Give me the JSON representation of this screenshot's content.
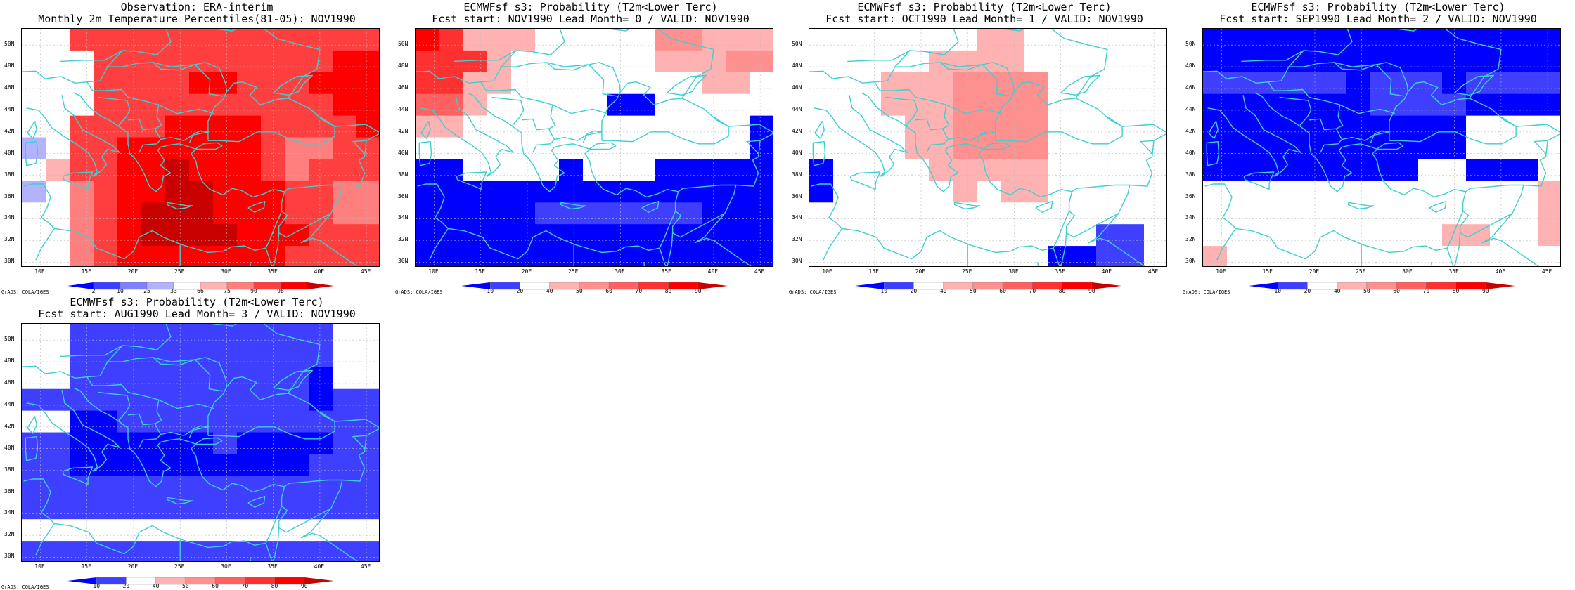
{
  "credit": "GrADS: COLA/IGES",
  "lat_labels": [
    "50N",
    "48N",
    "46N",
    "44N",
    "42N",
    "40N",
    "38N",
    "36N",
    "34N",
    "32N",
    "30N"
  ],
  "lon_labels": [
    "10E",
    "15E",
    "20E",
    "25E",
    "30E",
    "35E",
    "40E",
    "45E"
  ],
  "colors": {
    "coast": "#3fcfcf",
    "grid": "#bbbbbb",
    "obs_scale": [
      "#0000ff",
      "#3f3fff",
      "#7f7fff",
      "#b2b2ff",
      "#ffffff",
      "#ffb2b2",
      "#ff7f7f",
      "#ff3f3f",
      "#ff0000",
      "#c80000"
    ],
    "prob_scale": [
      "#0000ff",
      "#3f3fff",
      "#ffffff",
      "#ffb2b2",
      "#ff9090",
      "#ff6060",
      "#ff3030",
      "#ff0000",
      "#c80000"
    ]
  },
  "colorbars": {
    "obs": {
      "labels": [
        "2",
        "10",
        "25",
        "33",
        "66",
        "75",
        "90",
        "98"
      ]
    },
    "prob": {
      "labels": [
        "10",
        "20",
        "40",
        "50",
        "60",
        "70",
        "80",
        "90"
      ]
    }
  },
  "panels": [
    {
      "title1": "Observation: ERA-interim",
      "title2": "Monthly 2m Temperature Percentiles(81-05): NOV1990",
      "scale": "obs",
      "grid_levels": [
        [
          4,
          4,
          7,
          7,
          7,
          7,
          7,
          7,
          7,
          7,
          7,
          7,
          7,
          7,
          7
        ],
        [
          4,
          4,
          4,
          7,
          7,
          7,
          7,
          7,
          7,
          7,
          7,
          7,
          7,
          8,
          8
        ],
        [
          4,
          4,
          4,
          7,
          7,
          7,
          7,
          8,
          8,
          7,
          7,
          7,
          8,
          8,
          8
        ],
        [
          4,
          4,
          4,
          7,
          7,
          7,
          7,
          7,
          7,
          7,
          7,
          7,
          7,
          8,
          8
        ],
        [
          4,
          4,
          7,
          7,
          7,
          7,
          8,
          8,
          8,
          8,
          7,
          7,
          7,
          7,
          8
        ],
        [
          3,
          4,
          7,
          7,
          8,
          8,
          8,
          8,
          8,
          8,
          7,
          6,
          6,
          7,
          7
        ],
        [
          4,
          5,
          7,
          7,
          8,
          8,
          9,
          8,
          8,
          8,
          7,
          6,
          7,
          7,
          7
        ],
        [
          3,
          4,
          6,
          7,
          8,
          8,
          9,
          9,
          8,
          8,
          8,
          7,
          7,
          6,
          6
        ],
        [
          4,
          4,
          6,
          7,
          8,
          9,
          9,
          9,
          8,
          8,
          8,
          7,
          7,
          6,
          6
        ],
        [
          4,
          4,
          6,
          7,
          8,
          9,
          9,
          9,
          9,
          8,
          8,
          8,
          7,
          7,
          7
        ],
        [
          4,
          4,
          6,
          7,
          8,
          8,
          8,
          8,
          8,
          8,
          8,
          7,
          7,
          7,
          7
        ]
      ]
    },
    {
      "title1": "ECMWFsf s3: Probability (T2m<Lower Terc)",
      "title2": "Fcst start: NOV1990  Lead Month= 0 / VALID: NOV1990",
      "scale": "prob",
      "grid_levels": [
        [
          7,
          6,
          3,
          3,
          3,
          2,
          2,
          2,
          2,
          2,
          4,
          4,
          3,
          3,
          3
        ],
        [
          6,
          6,
          6,
          3,
          2,
          2,
          2,
          2,
          2,
          2,
          3,
          3,
          3,
          4,
          4
        ],
        [
          6,
          6,
          3,
          3,
          2,
          2,
          2,
          2,
          2,
          2,
          2,
          2,
          3,
          3,
          2
        ],
        [
          5,
          5,
          3,
          2,
          2,
          2,
          2,
          2,
          0,
          0,
          2,
          2,
          2,
          2,
          2
        ],
        [
          3,
          3,
          2,
          2,
          2,
          2,
          2,
          2,
          2,
          2,
          2,
          2,
          2,
          2,
          0
        ],
        [
          2,
          2,
          2,
          2,
          2,
          2,
          2,
          2,
          2,
          2,
          2,
          2,
          2,
          2,
          0
        ],
        [
          0,
          0,
          2,
          2,
          2,
          2,
          0,
          2,
          2,
          2,
          0,
          0,
          0,
          0,
          0
        ],
        [
          0,
          0,
          0,
          0,
          0,
          0,
          0,
          0,
          0,
          0,
          0,
          0,
          0,
          0,
          0
        ],
        [
          0,
          0,
          0,
          0,
          0,
          1,
          1,
          1,
          1,
          1,
          1,
          1,
          0,
          0,
          0
        ],
        [
          0,
          0,
          0,
          0,
          0,
          0,
          0,
          0,
          0,
          0,
          0,
          0,
          0,
          0,
          0
        ],
        [
          0,
          0,
          0,
          0,
          0,
          0,
          0,
          0,
          0,
          0,
          0,
          0,
          0,
          0,
          0
        ]
      ]
    },
    {
      "title1": "ECMWFsf s3: Probability (T2m<Lower Terc)",
      "title2": "Fcst start: OCT1990  Lead Month= 1 / VALID: NOV1990",
      "scale": "prob",
      "grid_levels": [
        [
          2,
          2,
          2,
          2,
          2,
          2,
          2,
          3,
          3,
          2,
          2,
          2,
          2,
          2,
          2
        ],
        [
          2,
          2,
          2,
          2,
          2,
          3,
          3,
          3,
          3,
          2,
          2,
          2,
          2,
          2,
          2
        ],
        [
          2,
          2,
          2,
          3,
          3,
          3,
          4,
          4,
          4,
          4,
          2,
          2,
          2,
          2,
          2
        ],
        [
          2,
          2,
          2,
          3,
          3,
          3,
          4,
          4,
          4,
          4,
          2,
          2,
          2,
          2,
          2
        ],
        [
          2,
          2,
          2,
          2,
          3,
          3,
          4,
          4,
          4,
          4,
          2,
          2,
          2,
          2,
          2
        ],
        [
          2,
          2,
          2,
          2,
          3,
          3,
          4,
          4,
          4,
          4,
          2,
          2,
          2,
          2,
          2
        ],
        [
          0,
          2,
          2,
          2,
          2,
          3,
          3,
          3,
          3,
          3,
          2,
          2,
          2,
          2,
          2
        ],
        [
          0,
          2,
          2,
          2,
          2,
          2,
          3,
          2,
          3,
          3,
          2,
          2,
          2,
          2,
          2
        ],
        [
          2,
          2,
          2,
          2,
          2,
          2,
          2,
          2,
          2,
          2,
          2,
          2,
          2,
          2,
          2
        ],
        [
          2,
          2,
          2,
          2,
          2,
          2,
          2,
          2,
          2,
          2,
          2,
          2,
          1,
          1,
          2
        ],
        [
          2,
          2,
          2,
          2,
          2,
          2,
          2,
          2,
          2,
          2,
          0,
          0,
          1,
          1,
          2
        ]
      ]
    },
    {
      "title1": "ECMWFsf s3: Probability (T2m<Lower Terc)",
      "title2": "Fcst start: SEP1990  Lead Month= 2 / VALID: NOV1990",
      "scale": "prob",
      "grid_levels": [
        [
          0,
          0,
          0,
          0,
          0,
          0,
          0,
          0,
          0,
          0,
          0,
          0,
          0,
          0,
          0
        ],
        [
          0,
          0,
          0,
          0,
          0,
          0,
          0,
          0,
          0,
          0,
          0,
          0,
          0,
          0,
          0
        ],
        [
          1,
          1,
          1,
          1,
          1,
          1,
          0,
          1,
          1,
          1,
          0,
          1,
          1,
          1,
          1
        ],
        [
          0,
          0,
          0,
          0,
          0,
          0,
          0,
          1,
          1,
          1,
          1,
          0,
          0,
          0,
          0
        ],
        [
          0,
          0,
          0,
          0,
          0,
          0,
          0,
          0,
          0,
          0,
          0,
          2,
          2,
          2,
          2
        ],
        [
          0,
          0,
          0,
          0,
          0,
          0,
          0,
          0,
          0,
          0,
          0,
          2,
          2,
          2,
          2
        ],
        [
          0,
          0,
          0,
          0,
          0,
          0,
          0,
          0,
          0,
          2,
          2,
          0,
          0,
          0,
          2
        ],
        [
          2,
          2,
          2,
          2,
          2,
          2,
          2,
          2,
          2,
          2,
          2,
          2,
          2,
          2,
          3
        ],
        [
          2,
          2,
          2,
          2,
          2,
          2,
          2,
          2,
          2,
          2,
          2,
          2,
          2,
          2,
          3
        ],
        [
          2,
          2,
          2,
          2,
          2,
          2,
          2,
          2,
          2,
          2,
          3,
          3,
          2,
          2,
          3
        ],
        [
          3,
          2,
          2,
          2,
          2,
          2,
          2,
          2,
          2,
          2,
          2,
          2,
          2,
          2,
          2
        ]
      ]
    },
    {
      "title1": "ECMWFsf s3: Probability (T2m<Lower Terc)",
      "title2": "Fcst start: AUG1990  Lead Month= 3 / VALID: NOV1990",
      "scale": "prob",
      "grid_levels": [
        [
          2,
          2,
          1,
          1,
          1,
          1,
          1,
          1,
          1,
          1,
          1,
          1,
          1,
          2,
          2
        ],
        [
          2,
          2,
          1,
          1,
          1,
          1,
          1,
          1,
          1,
          1,
          1,
          1,
          1,
          2,
          2
        ],
        [
          2,
          2,
          1,
          1,
          1,
          1,
          1,
          1,
          1,
          1,
          1,
          1,
          0,
          2,
          2
        ],
        [
          1,
          1,
          1,
          1,
          1,
          1,
          1,
          1,
          1,
          1,
          1,
          1,
          0,
          1,
          1
        ],
        [
          2,
          2,
          0,
          0,
          1,
          1,
          1,
          1,
          1,
          1,
          1,
          1,
          1,
          1,
          1
        ],
        [
          1,
          1,
          0,
          0,
          0,
          0,
          0,
          0,
          1,
          0,
          0,
          0,
          0,
          1,
          1
        ],
        [
          1,
          1,
          0,
          0,
          0,
          0,
          0,
          0,
          0,
          0,
          0,
          0,
          1,
          1,
          1
        ],
        [
          1,
          1,
          1,
          1,
          1,
          1,
          1,
          1,
          1,
          1,
          1,
          1,
          1,
          1,
          1
        ],
        [
          1,
          1,
          1,
          1,
          1,
          1,
          1,
          1,
          1,
          1,
          1,
          1,
          1,
          1,
          1
        ],
        [
          2,
          2,
          2,
          2,
          2,
          2,
          2,
          2,
          2,
          2,
          2,
          2,
          2,
          2,
          2
        ],
        [
          1,
          1,
          1,
          1,
          1,
          1,
          1,
          1,
          1,
          1,
          1,
          1,
          1,
          1,
          1
        ]
      ]
    }
  ]
}
